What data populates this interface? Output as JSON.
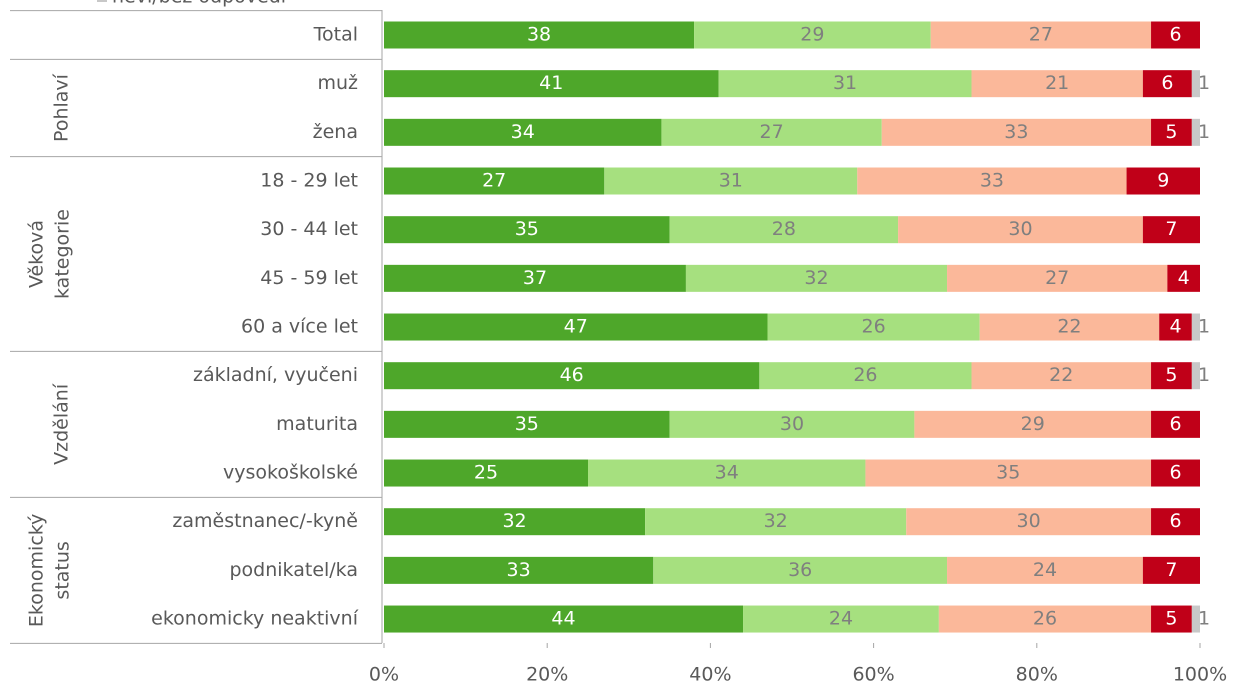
{
  "chart_data": {
    "type": "stacked-barh",
    "categories": [
      "Total",
      "muž",
      "žena",
      "18 - 29 let",
      "30 - 44 let",
      "45 - 59 let",
      "60 a více let",
      "základní, vyučeni",
      "maturita",
      "vysokoškolské",
      "zaměstnanec/-kyně",
      "podnikatel/ka",
      "ekonomicky neaktivní"
    ],
    "row_groups": [
      [
        "Pohlaví"
      ],
      [
        "Věková",
        "kategorie"
      ],
      [
        "Vzdělání"
      ],
      [
        "Ekonomický",
        "status"
      ]
    ],
    "series": [
      {
        "color": "#4ea72a",
        "label_color": "#ffffff",
        "values": [
          38,
          41,
          34,
          27,
          35,
          37,
          47,
          46,
          35,
          25,
          32,
          33,
          44
        ]
      },
      {
        "color": "#a6e07f",
        "label_color": "#7f7f7f",
        "values": [
          29,
          31,
          27,
          31,
          28,
          32,
          26,
          26,
          30,
          34,
          32,
          36,
          24
        ]
      },
      {
        "color": "#fbb89a",
        "label_color": "#7f7f7f",
        "values": [
          27,
          21,
          33,
          33,
          30,
          27,
          22,
          22,
          29,
          35,
          30,
          24,
          26
        ]
      },
      {
        "color": "#c00018",
        "label_color": "#ffffff",
        "values": [
          6,
          6,
          5,
          9,
          7,
          4,
          4,
          5,
          6,
          6,
          6,
          7,
          5
        ]
      },
      {
        "name": "neví/bez odpovědi",
        "color": "#c8c8c8",
        "label_color": "#7f7f7f",
        "values": [
          null,
          1,
          1,
          null,
          null,
          null,
          1,
          1,
          null,
          null,
          null,
          null,
          1
        ]
      }
    ],
    "xlim": [
      0,
      100
    ],
    "xticks": [
      {
        "value": 0,
        "label": "0%"
      },
      {
        "value": 20,
        "label": "20%"
      },
      {
        "value": 40,
        "label": "40%"
      },
      {
        "value": 60,
        "label": "60%"
      },
      {
        "value": 80,
        "label": "80%"
      },
      {
        "value": 100,
        "label": "100%"
      }
    ]
  }
}
